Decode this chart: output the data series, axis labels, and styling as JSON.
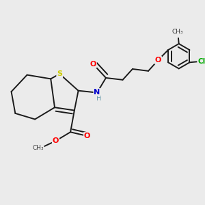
{
  "background_color": "#ebebeb",
  "bond_color": "#1a1a1a",
  "atom_colors": {
    "O": "#ff0000",
    "N": "#0000cc",
    "S": "#cccc00",
    "Cl": "#00aa00",
    "C": "#1a1a1a",
    "H": "#6699aa"
  },
  "lw": 1.4,
  "figsize": [
    3.0,
    3.0
  ],
  "dpi": 100
}
